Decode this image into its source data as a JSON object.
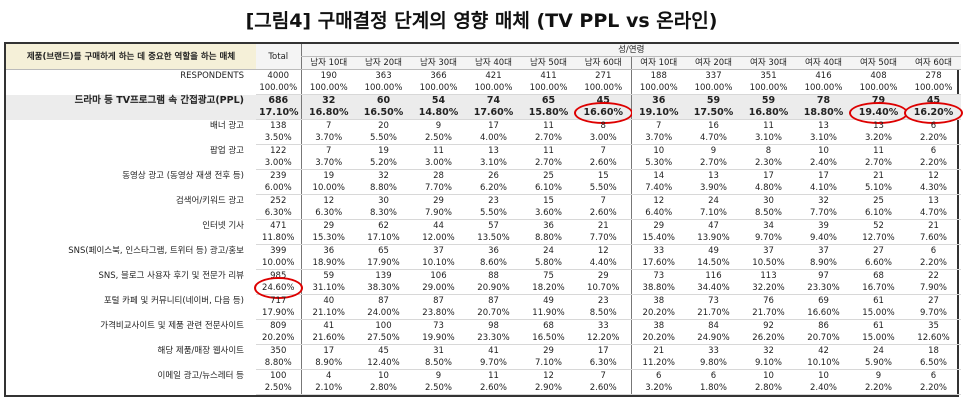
{
  "title": "[그림4] 구매결정 단계의 영향 매체 (TV PPL vs 온라인)",
  "table": {
    "corner": "제품(브랜드)를 구매하게 하는 데 중요한 역할을 하는 매체",
    "total_header": "Total",
    "group_header": "성/연령",
    "columns": [
      "남자 10대",
      "남자 20대",
      "남자 30대",
      "남자 40대",
      "남자 50대",
      "남자 60대",
      "여자 10대",
      "여자 20대",
      "여자 30대",
      "여자 40대",
      "여자 50대",
      "여자 60대"
    ],
    "rows": [
      {
        "label": "RESPONDENTS",
        "counts": [
          4000,
          190,
          363,
          366,
          421,
          411,
          271,
          188,
          337,
          351,
          416,
          408,
          278
        ],
        "percents": [
          "100.00%",
          "100.00%",
          "100.00%",
          "100.00%",
          "100.00%",
          "100.00%",
          "100.00%",
          "100.00%",
          "100.00%",
          "100.00%",
          "100.00%",
          "100.00%",
          "100.00%"
        ]
      },
      {
        "label": "드라마 등 TV프로그램 속 간접광고(PPL)",
        "counts": [
          686,
          32,
          60,
          54,
          74,
          65,
          45,
          36,
          59,
          59,
          78,
          79,
          45
        ],
        "percents": [
          "17.10%",
          "16.80%",
          "16.50%",
          "14.80%",
          "17.60%",
          "15.80%",
          "16.60%",
          "19.10%",
          "17.50%",
          "16.80%",
          "18.80%",
          "19.40%",
          "16.20%"
        ]
      },
      {
        "label": "배너 광고",
        "counts": [
          138,
          7,
          20,
          9,
          17,
          11,
          8,
          7,
          16,
          11,
          13,
          13,
          6
        ],
        "percents": [
          "3.50%",
          "3.70%",
          "5.50%",
          "2.50%",
          "4.00%",
          "2.70%",
          "3.00%",
          "3.70%",
          "4.70%",
          "3.10%",
          "3.10%",
          "3.20%",
          "2.20%"
        ]
      },
      {
        "label": "팝업 광고",
        "counts": [
          122,
          7,
          19,
          11,
          13,
          11,
          7,
          10,
          9,
          8,
          10,
          11,
          6
        ],
        "percents": [
          "3.00%",
          "3.70%",
          "5.20%",
          "3.00%",
          "3.10%",
          "2.70%",
          "2.60%",
          "5.30%",
          "2.70%",
          "2.30%",
          "2.40%",
          "2.70%",
          "2.20%"
        ]
      },
      {
        "label": "동영상 광고 (동영상 재생 전후 등)",
        "counts": [
          239,
          19,
          32,
          28,
          26,
          25,
          15,
          14,
          13,
          17,
          17,
          21,
          12
        ],
        "percents": [
          "6.00%",
          "10.00%",
          "8.80%",
          "7.70%",
          "6.20%",
          "6.10%",
          "5.50%",
          "7.40%",
          "3.90%",
          "4.80%",
          "4.10%",
          "5.10%",
          "4.30%"
        ]
      },
      {
        "label": "검색어/키워드 광고",
        "counts": [
          252,
          12,
          30,
          29,
          23,
          15,
          7,
          12,
          24,
          30,
          32,
          25,
          13
        ],
        "percents": [
          "6.30%",
          "6.30%",
          "8.30%",
          "7.90%",
          "5.50%",
          "3.60%",
          "2.60%",
          "6.40%",
          "7.10%",
          "8.50%",
          "7.70%",
          "6.10%",
          "4.70%"
        ]
      },
      {
        "label": "인터넷 기사",
        "counts": [
          471,
          29,
          62,
          44,
          57,
          36,
          21,
          29,
          47,
          34,
          39,
          52,
          21
        ],
        "percents": [
          "11.80%",
          "15.30%",
          "17.10%",
          "12.00%",
          "13.50%",
          "8.80%",
          "7.70%",
          "15.40%",
          "13.90%",
          "9.70%",
          "9.40%",
          "12.70%",
          "7.60%"
        ]
      },
      {
        "label": "SNS(페이스북, 인스타그램, 트위터 등) 광고/홍보",
        "counts": [
          399,
          36,
          65,
          37,
          36,
          24,
          12,
          33,
          49,
          37,
          37,
          27,
          6
        ],
        "percents": [
          "10.00%",
          "18.90%",
          "17.90%",
          "10.10%",
          "8.60%",
          "5.80%",
          "4.40%",
          "17.60%",
          "14.50%",
          "10.50%",
          "8.90%",
          "6.60%",
          "2.20%"
        ]
      },
      {
        "label": "SNS, 블로그 사용자 후기 및 전문가 리뷰",
        "counts": [
          985,
          59,
          139,
          106,
          88,
          75,
          29,
          73,
          116,
          113,
          97,
          68,
          22
        ],
        "percents": [
          "24.60%",
          "31.10%",
          "38.30%",
          "29.00%",
          "20.90%",
          "18.20%",
          "10.70%",
          "38.80%",
          "34.40%",
          "32.20%",
          "23.30%",
          "16.70%",
          "7.90%"
        ]
      },
      {
        "label": "포털 카페 및 커뮤니티(네이버, 다음 등)",
        "counts": [
          717,
          40,
          87,
          87,
          87,
          49,
          23,
          38,
          73,
          76,
          69,
          61,
          27
        ],
        "percents": [
          "17.90%",
          "21.10%",
          "24.00%",
          "23.80%",
          "20.70%",
          "11.90%",
          "8.50%",
          "20.20%",
          "21.70%",
          "21.70%",
          "16.60%",
          "15.00%",
          "9.70%"
        ]
      },
      {
        "label": "가격비교사이트 및 제품 관련 전문사이트",
        "counts": [
          809,
          41,
          100,
          73,
          98,
          68,
          33,
          38,
          84,
          92,
          86,
          61,
          35
        ],
        "percents": [
          "20.20%",
          "21.60%",
          "27.50%",
          "19.90%",
          "23.30%",
          "16.50%",
          "12.20%",
          "20.20%",
          "24.90%",
          "26.20%",
          "20.70%",
          "15.00%",
          "12.60%"
        ]
      },
      {
        "label": "해당 제품/매장 웹사이트",
        "counts": [
          350,
          17,
          45,
          31,
          41,
          29,
          17,
          21,
          33,
          32,
          42,
          24,
          18
        ],
        "percents": [
          "8.80%",
          "8.90%",
          "12.40%",
          "8.50%",
          "9.70%",
          "7.10%",
          "6.30%",
          "11.20%",
          "9.80%",
          "9.10%",
          "10.10%",
          "5.90%",
          "6.50%"
        ]
      },
      {
        "label": "이메일 광고/뉴스레터 등",
        "counts": [
          100,
          4,
          10,
          9,
          11,
          12,
          7,
          6,
          6,
          10,
          10,
          9,
          6
        ],
        "percents": [
          "2.50%",
          "2.10%",
          "2.80%",
          "2.50%",
          "2.60%",
          "2.90%",
          "2.60%",
          "3.20%",
          "1.80%",
          "2.80%",
          "2.40%",
          "2.20%",
          "2.20%"
        ]
      }
    ]
  }
}
